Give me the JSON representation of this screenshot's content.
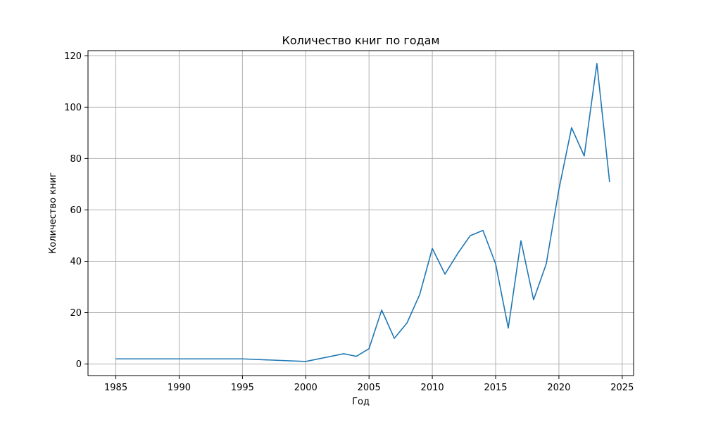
{
  "chart_data": {
    "type": "line",
    "title": "Количество книг по годам",
    "xlabel": "Год",
    "ylabel": "Количество книг",
    "xlim": [
      1982.8,
      2025.9
    ],
    "ylim": [
      -4.5,
      122
    ],
    "xticks": [
      1985,
      1990,
      1995,
      2000,
      2005,
      2010,
      2015,
      2020,
      2025
    ],
    "yticks": [
      0,
      20,
      40,
      60,
      80,
      100,
      120
    ],
    "grid": true,
    "series": [
      {
        "color": "#1f77b4",
        "x": [
          1985,
          1995,
          2000,
          2003,
          2004,
          2005,
          2006,
          2007,
          2008,
          2009,
          2010,
          2011,
          2012,
          2013,
          2014,
          2015,
          2016,
          2017,
          2018,
          2019,
          2020,
          2021,
          2022,
          2023,
          2024
        ],
        "y": [
          2,
          2,
          1,
          4,
          3,
          6,
          21,
          10,
          16,
          27,
          45,
          35,
          43,
          50,
          52,
          39,
          14,
          48,
          25,
          39,
          68,
          92,
          81,
          117,
          71
        ]
      }
    ]
  }
}
